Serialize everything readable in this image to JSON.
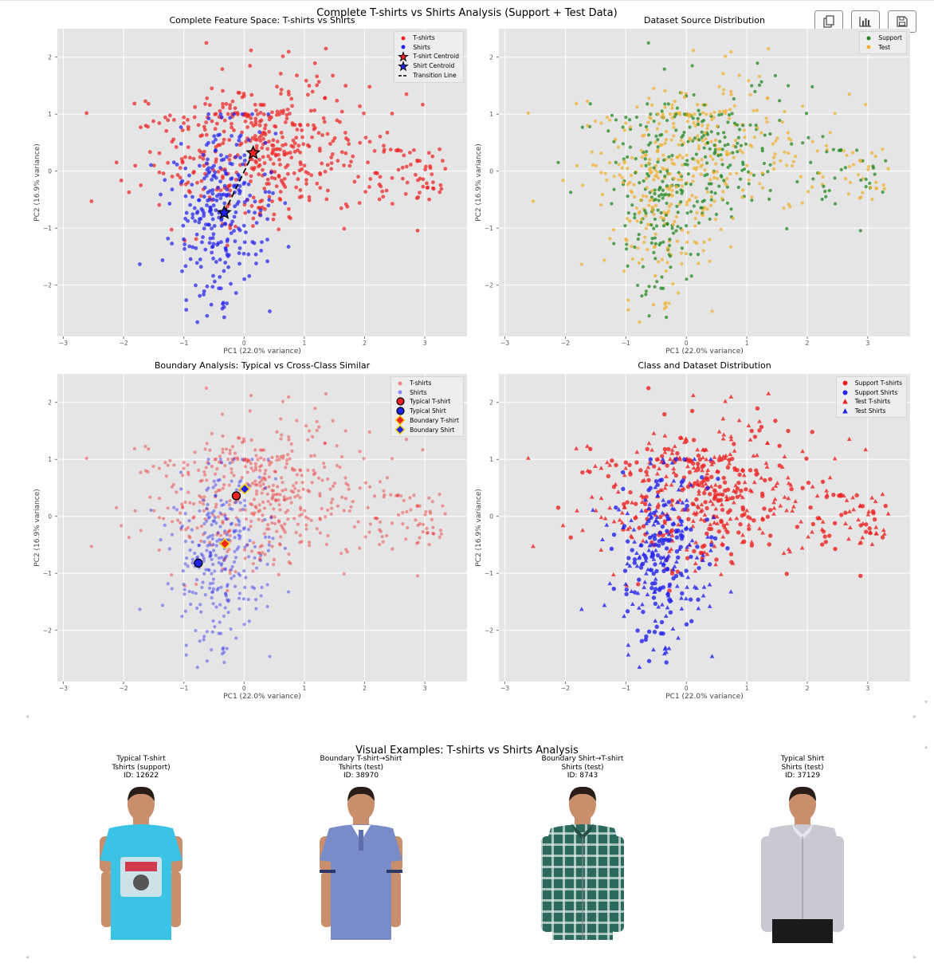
{
  "figure": {
    "suptitle": "Complete T-shirts vs Shirts Analysis (Support + Test Data)",
    "examples_title": "Visual Examples: T-shirts vs Shirts Analysis"
  },
  "toolbar": {
    "icons": [
      "copy-icon",
      "bar-chart-icon",
      "save-icon"
    ]
  },
  "colors": {
    "tshirt": "#ee2222",
    "shirt": "#2222ee",
    "support": "#228822",
    "test": "#f0b030",
    "axes_bg": "#e5e5e5",
    "boundary_marker": "#f0d000"
  },
  "chart_data": [
    {
      "id": "p1",
      "type": "scatter",
      "title": "Complete Feature Space: T-shirts vs Shirts",
      "xlabel": "PC1 (22.0% variance)",
      "ylabel": "PC2 (16.9% variance)",
      "xlim": [
        -3.1,
        3.7
      ],
      "ylim": [
        -2.9,
        2.5
      ],
      "xticks": [
        "−3",
        "−2",
        "−1",
        "0",
        "1",
        "2",
        "3"
      ],
      "yticks": [
        "−2",
        "−1",
        "0",
        "1",
        "2"
      ],
      "grid": true,
      "legend_position": "top-right",
      "legend": [
        "T-shirts",
        "Shirts",
        "T-shirt Centroid",
        "Shirt Centroid",
        "Transition Line"
      ],
      "series": [
        {
          "name": "T-shirts",
          "approx_count": 520,
          "center": [
            0.3,
            0.4
          ],
          "spread": [
            1.0,
            0.75
          ]
        },
        {
          "name": "Shirts",
          "approx_count": 280,
          "center": [
            -0.4,
            -0.7
          ],
          "spread": [
            0.45,
            0.75
          ]
        }
      ],
      "centroids": [
        {
          "name": "T-shirt Centroid",
          "x": 0.15,
          "y": 0.32
        },
        {
          "name": "Shirt Centroid",
          "x": -0.33,
          "y": -0.73
        }
      ],
      "transition_line": {
        "from": [
          -0.33,
          -0.73
        ],
        "to": [
          0.15,
          0.32
        ]
      }
    },
    {
      "id": "p2",
      "type": "scatter",
      "title": "Dataset Source Distribution",
      "xlabel": "PC1 (22.0% variance)",
      "ylabel": "PC2 (16.9% variance)",
      "xlim": [
        -3.1,
        3.7
      ],
      "ylim": [
        -2.9,
        2.5
      ],
      "xticks": [
        "−3",
        "−2",
        "−1",
        "0",
        "1",
        "2",
        "3"
      ],
      "yticks": [
        "−2",
        "−1",
        "0",
        "1",
        "2"
      ],
      "grid": true,
      "legend_position": "top-right",
      "legend": [
        "Support",
        "Test"
      ]
    },
    {
      "id": "p3",
      "type": "scatter",
      "title": "Boundary Analysis: Typical vs Cross-Class Similar",
      "xlabel": "PC1 (22.0% variance)",
      "ylabel": "PC2 (16.9% variance)",
      "xlim": [
        -3.1,
        3.7
      ],
      "ylim": [
        -2.9,
        2.5
      ],
      "xticks": [
        "−3",
        "−2",
        "−1",
        "0",
        "1",
        "2",
        "3"
      ],
      "yticks": [
        "−2",
        "−1",
        "0",
        "1",
        "2"
      ],
      "grid": true,
      "legend_position": "top-right",
      "legend": [
        "T-shirts",
        "Shirts",
        "Typical T-shirt",
        "Typical Shirt",
        "Boundary T-shirt",
        "Boundary Shirt"
      ],
      "highlights": [
        {
          "name": "Typical T-shirt",
          "x": -0.13,
          "y": 0.36
        },
        {
          "name": "Typical Shirt",
          "x": -0.76,
          "y": -0.82
        },
        {
          "name": "Boundary T-shirt",
          "x": -0.32,
          "y": -0.48
        },
        {
          "name": "Boundary Shirt",
          "x": 0.01,
          "y": 0.48
        }
      ]
    },
    {
      "id": "p4",
      "type": "scatter",
      "title": "Class and Dataset Distribution",
      "xlabel": "PC1 (22.0% variance)",
      "ylabel": "PC2 (16.9% variance)",
      "xlim": [
        -3.1,
        3.7
      ],
      "ylim": [
        -2.9,
        2.5
      ],
      "xticks": [
        "−3",
        "−2",
        "−1",
        "0",
        "1",
        "2",
        "3"
      ],
      "yticks": [
        "−2",
        "−1",
        "0",
        "1",
        "2"
      ],
      "grid": true,
      "legend_position": "top-right",
      "legend": [
        "Support T-shirts",
        "Support Shirts",
        "Test T-shirts",
        "Test Shirts"
      ]
    }
  ],
  "examples": [
    {
      "line1": "Typical T-shirt",
      "line2": "Tshirts (support)",
      "line3": "ID: 12622",
      "garment": "tshirt",
      "color": "#3bc3e6"
    },
    {
      "line1": "Boundary T-shirt→Shirt",
      "line2": "Tshirts (test)",
      "line3": "ID: 38970",
      "garment": "polo",
      "color": "#7a8cc8"
    },
    {
      "line1": "Boundary Shirt→T-shirt",
      "line2": "Shirts (test)",
      "line3": "ID: 8743",
      "garment": "check",
      "color": "#2d6a5e"
    },
    {
      "line1": "Typical Shirt",
      "line2": "Shirts (test)",
      "line3": "ID: 37129",
      "garment": "dress",
      "color": "#c9c9d4"
    }
  ]
}
